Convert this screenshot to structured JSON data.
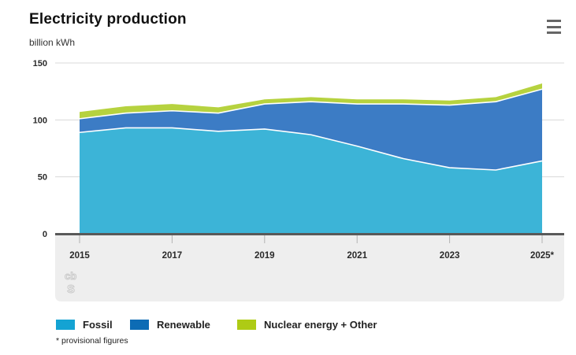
{
  "header": {
    "title": "Electricity production",
    "unit_label": "billion kWh"
  },
  "menu": {
    "icon": "hamburger-icon"
  },
  "colors": {
    "area_fossil": "#3cb4d7",
    "area_renewable": "#3c7cc5",
    "area_nuclear_other": "#b6d23f",
    "legend_fossil": "#14a3d3",
    "legend_renewable": "#0d6cb5",
    "legend_nuclear_other": "#aecb15",
    "gridline": "#d8d8d8",
    "axis_line": "#595959",
    "axis_band": "#eeeeee",
    "tick_mark": "#b3b3b3",
    "text_dark": "#2a2a2a",
    "logo_gray": "#c6c6c6"
  },
  "chart_data": {
    "type": "area",
    "stacked": true,
    "title": "Electricity production",
    "ylabel": "billion kWh",
    "xlabel": "",
    "x": [
      2015,
      2016,
      2017,
      2018,
      2019,
      2020,
      2021,
      2022,
      2023,
      2024,
      2025
    ],
    "x_tick_years": [
      2015,
      2017,
      2019,
      2021,
      2023,
      2025
    ],
    "x_tick_labels": [
      "2015",
      "2017",
      "2019",
      "2021",
      "2023",
      "2025*"
    ],
    "y_ticks": [
      0,
      50,
      100,
      150
    ],
    "ylim": [
      0,
      150
    ],
    "grid": true,
    "legend_position": "bottom",
    "series": [
      {
        "name": "Fossil",
        "values": [
          89,
          93,
          93,
          90,
          92,
          87,
          77,
          66,
          58,
          56,
          64
        ]
      },
      {
        "name": "Renewable",
        "values": [
          12,
          13,
          15,
          16,
          22,
          29,
          37,
          48,
          55,
          60,
          63
        ]
      },
      {
        "name": "Nuclear energy + Other",
        "values": [
          6,
          6,
          6,
          5,
          4,
          4,
          4,
          4,
          4,
          4,
          5
        ]
      }
    ],
    "totals": [
      107,
      112,
      114,
      111,
      118,
      120,
      118,
      118,
      117,
      120,
      132
    ]
  },
  "legend": {
    "items": [
      {
        "label": "Fossil"
      },
      {
        "label": "Renewable"
      },
      {
        "label": "Nuclear energy + Other"
      }
    ]
  },
  "footnote": "* provisional figures",
  "watermark": {
    "text_top": "cb",
    "text_bottom": "s"
  }
}
